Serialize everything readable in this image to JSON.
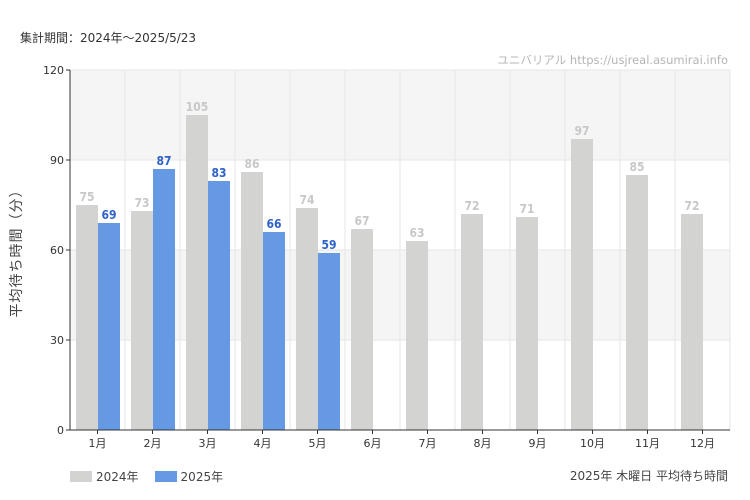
{
  "header": {
    "period": "集計期間：2024年～2025/5/23",
    "credit": "ユニバリアル  https://usjreal.asumirai.info"
  },
  "footer": {
    "note": "2025年 木曜日 平均待ち時間"
  },
  "colors": {
    "series_2024": "#d3d3d1",
    "series_2025": "#6699e3",
    "label_2024": "#c8c8c8",
    "label_2025": "#2f62c8",
    "band": "#f5f5f5",
    "grid": "#e6e6e6",
    "axis": "#333333"
  },
  "chart_data": {
    "type": "bar",
    "ylabel": "平均待ち時間（分）",
    "xlabel": "",
    "ylim": [
      0,
      120
    ],
    "yticks": [
      0,
      30,
      60,
      90,
      120
    ],
    "ytick_labels": [
      "0",
      "30",
      "60",
      "90",
      "120"
    ],
    "grid": true,
    "legend_position": "bottom-left",
    "categories": [
      "1月",
      "2月",
      "3月",
      "4月",
      "5月",
      "6月",
      "7月",
      "8月",
      "9月",
      "10月",
      "11月",
      "12月"
    ],
    "series": [
      {
        "name": "2024年",
        "values": [
          75,
          73,
          105,
          86,
          74,
          67,
          63,
          72,
          71,
          97,
          85,
          72
        ]
      },
      {
        "name": "2025年",
        "values": [
          69,
          87,
          83,
          66,
          59,
          null,
          null,
          null,
          null,
          null,
          null,
          null
        ]
      }
    ]
  }
}
